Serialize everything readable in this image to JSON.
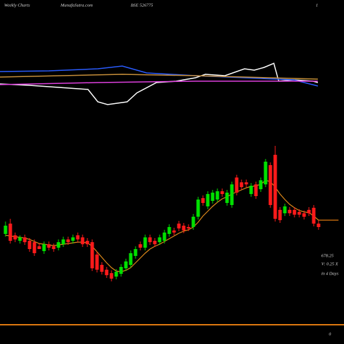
{
  "header": {
    "left": "Weekly Charts",
    "site": "MunafaSutra.com",
    "symbol": "BSE 526775",
    "right": "1"
  },
  "chart_data": [
    {
      "type": "line",
      "xlim": [
        0,
        65
      ],
      "ylim": [
        40,
        120
      ],
      "series": [
        {
          "name": "indicator-white",
          "color": "#ffffff",
          "x": [
            0,
            6,
            12,
            18,
            20,
            22,
            24,
            26,
            28,
            32,
            36,
            40,
            42,
            46,
            48,
            50,
            52,
            54,
            56,
            57,
            60,
            64,
            65
          ],
          "values": [
            78,
            76,
            73,
            70,
            52,
            48,
            50,
            52,
            65,
            80,
            82,
            87,
            92,
            90,
            95,
            100,
            98,
            102,
            108,
            82,
            84,
            82,
            80
          ]
        },
        {
          "name": "indicator-blue",
          "color": "#2a5cff",
          "x": [
            0,
            10,
            20,
            25,
            27,
            30,
            40,
            50,
            60,
            65
          ],
          "values": [
            96,
            97,
            100,
            104,
            100,
            94,
            90,
            87,
            84,
            75
          ]
        },
        {
          "name": "indicator-orange",
          "color": "#c8903a",
          "x": [
            0,
            25,
            40,
            65
          ],
          "values": [
            88,
            92,
            90,
            85
          ]
        },
        {
          "name": "indicator-pink",
          "color": "#e040e0",
          "x": [
            0,
            20,
            40,
            65
          ],
          "values": [
            77,
            80,
            82,
            82
          ]
        }
      ]
    },
    {
      "type": "candlestick",
      "ylim": [
        0,
        500
      ],
      "open": [
        160,
        175,
        158,
        150,
        155,
        150,
        148,
        142,
        135,
        145,
        142,
        140,
        145,
        152,
        150,
        158,
        155,
        150,
        148,
        130,
        115,
        108,
        103,
        98,
        102,
        110,
        115,
        128,
        145,
        140,
        155,
        150,
        148,
        150,
        160,
        165,
        175,
        172,
        170,
        170,
        185,
        212,
        200,
        208,
        210,
        222,
        205,
        202,
        242,
        235,
        235,
        218,
        232,
        225,
        232,
        260,
        275,
        195,
        190,
        195,
        195,
        192,
        190,
        195,
        198,
        175
      ],
      "high": [
        178,
        182,
        162,
        158,
        159,
        154,
        152,
        146,
        149,
        149,
        146,
        152,
        156,
        156,
        159,
        162,
        159,
        154,
        152,
        134,
        119,
        112,
        107,
        109,
        116,
        124,
        136,
        142,
        149,
        159,
        159,
        154,
        159,
        166,
        174,
        169,
        179,
        176,
        174,
        189,
        214,
        216,
        222,
        224,
        226,
        226,
        224,
        236,
        246,
        239,
        239,
        234,
        236,
        242,
        269,
        264,
        288,
        199,
        204,
        199,
        199,
        196,
        194,
        199,
        202,
        179
      ],
      "low": [
        156,
        146,
        148,
        146,
        144,
        134,
        128,
        138,
        131,
        136,
        134,
        136,
        141,
        144,
        146,
        148,
        141,
        141,
        106,
        104,
        101,
        96,
        91,
        94,
        98,
        106,
        111,
        124,
        136,
        136,
        144,
        141,
        144,
        146,
        156,
        158,
        164,
        161,
        164,
        166,
        181,
        201,
        196,
        204,
        206,
        214,
        201,
        198,
        216,
        224,
        228,
        214,
        211,
        221,
        228,
        198,
        178,
        176,
        186,
        186,
        184,
        184,
        181,
        186,
        171,
        166
      ],
      "close": [
        172,
        150,
        152,
        155,
        148,
        138,
        132,
        138,
        145,
        140,
        138,
        148,
        152,
        148,
        155,
        152,
        145,
        145,
        110,
        108,
        105,
        100,
        95,
        105,
        112,
        120,
        132,
        138,
        140,
        155,
        148,
        145,
        155,
        162,
        170,
        162,
        168,
        165,
        168,
        185,
        210,
        205,
        218,
        220,
        222,
        218,
        220,
        232,
        220,
        228,
        232,
        230,
        215,
        238,
        265,
        202,
        182,
        180,
        200,
        190,
        188,
        188,
        185,
        190,
        175,
        170
      ],
      "ma": [
        158,
        157,
        156,
        155,
        154,
        152,
        149,
        146,
        145,
        144,
        143,
        144,
        145,
        146,
        147,
        148,
        148,
        147,
        142,
        134,
        126,
        118,
        111,
        106,
        105,
        107,
        111,
        118,
        125,
        132,
        138,
        142,
        145,
        149,
        153,
        157,
        161,
        164,
        166,
        170,
        177,
        186,
        193,
        200,
        206,
        211,
        214,
        218,
        221,
        224,
        227,
        229,
        230,
        232,
        238,
        236,
        228,
        218,
        210,
        203,
        198,
        194,
        192,
        191,
        186,
        180
      ],
      "price_label": "678.25",
      "volume_label": "V: 0.25 X",
      "days_label": "in 4 Days",
      "bottom_label": "0",
      "up_color": "#00e000",
      "down_color": "#ff1a1a",
      "ma_color": "#e08a1a"
    }
  ]
}
